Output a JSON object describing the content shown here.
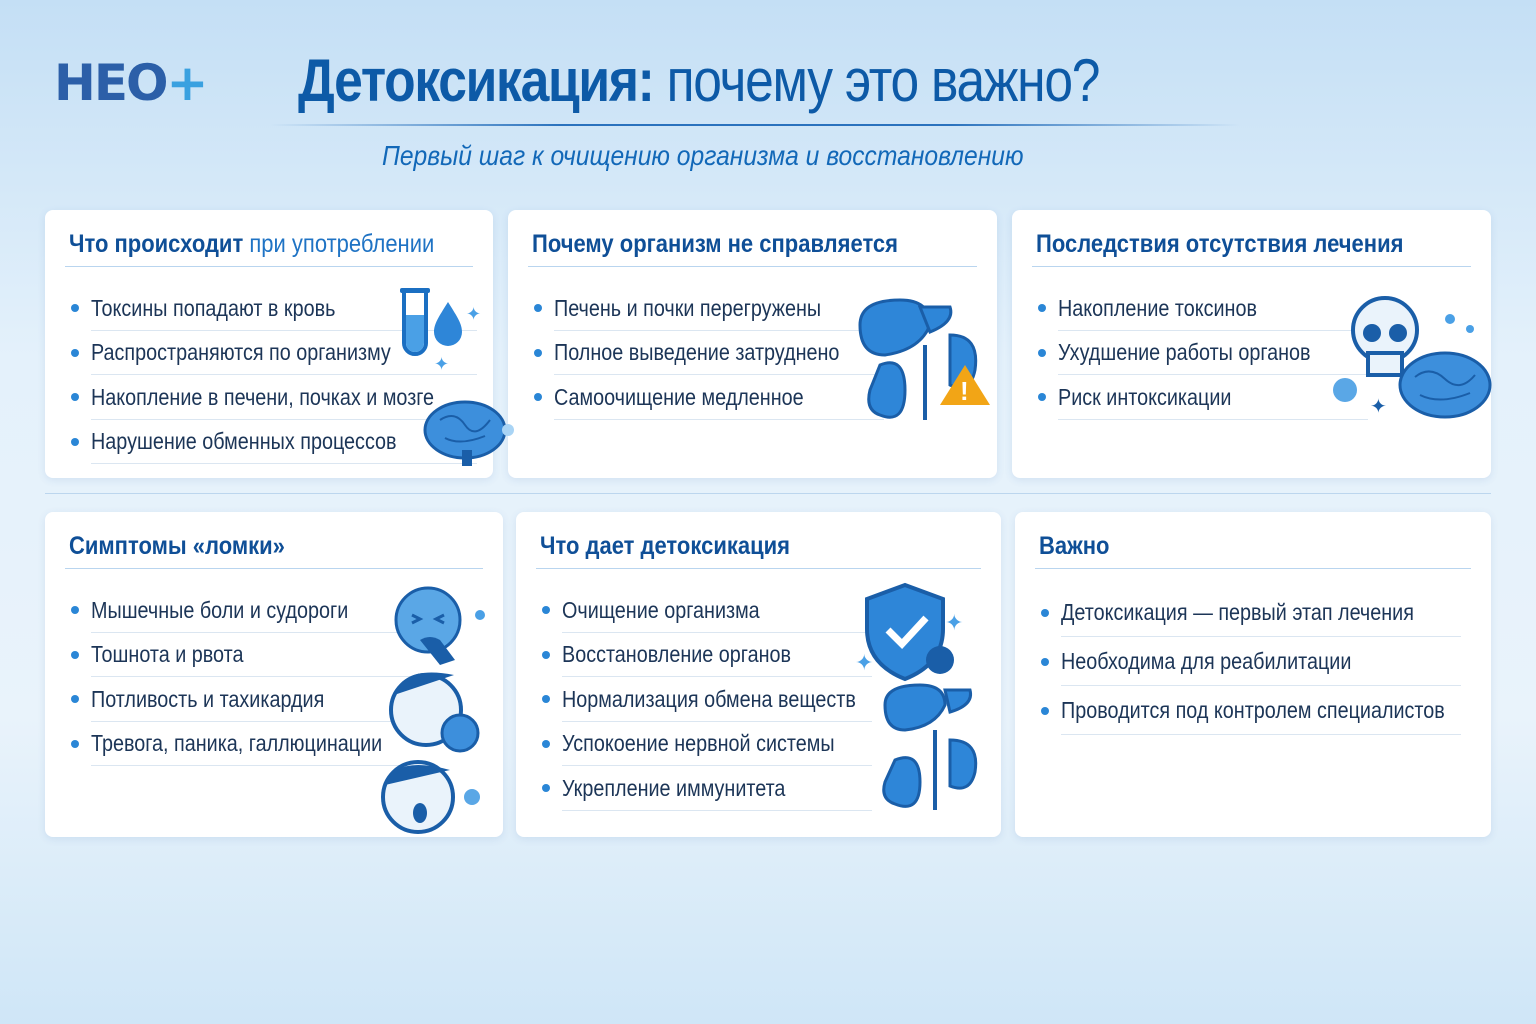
{
  "logo": {
    "text": "НЕО",
    "plus": "+"
  },
  "header": {
    "title_bold": "Детоксикация:",
    "title_rest": " почему это важно?",
    "subtitle": "Первый шаг к очищению организма и восстановлению"
  },
  "cards": [
    {
      "title_bold": "Что происходит",
      "title_rest": " при употреблении",
      "icon": "test-tube-drop-brain-icon",
      "items": [
        "Токсины попадают в кровь",
        "Распространяются по организму",
        "Накопление в печени, почках и мозге",
        "Нарушение обменных процессов"
      ]
    },
    {
      "title_bold": "Почему организм не справляется",
      "title_rest": "",
      "icon": "liver-kidney-warning-icon",
      "items": [
        "Печень и почки перегружены",
        "Полное выведение затруднено",
        "Самоочищение медленное"
      ]
    },
    {
      "title_bold": "Последствия отсутствия лечения",
      "title_rest": "",
      "icon": "skull-brain-icon",
      "items": [
        "Накопление токсинов",
        "Ухудшение работы органов",
        "Риск интоксикации"
      ]
    },
    {
      "title_bold": "Симптомы «ломки»",
      "title_rest": "",
      "icon": "sick-faces-icon",
      "items": [
        "Мышечные боли и судороги",
        "Тошнота и рвота",
        "Потливость и тахикардия",
        "Тревога, паника, галлюцинации"
      ]
    },
    {
      "title_bold": "Что дает детоксикация",
      "title_rest": "",
      "icon": "shield-organs-icon",
      "items": [
        "Очищение организма",
        "Восстановление органов",
        "Нормализация обмена веществ",
        "Успокоение нервной системы",
        "Укрепление иммунитета"
      ]
    },
    {
      "title_bold": "Важно",
      "title_rest": "",
      "icon": "none",
      "items": [
        "Детоксикация — первый этап лечения",
        "Необходима для реабилитации",
        "Проводится под контролем специалистов"
      ]
    }
  ],
  "colors": {
    "accent": "#0d5aa7",
    "bullet": "#2a86d6",
    "warning": "#f2a516",
    "icon": "#2e86d8"
  }
}
